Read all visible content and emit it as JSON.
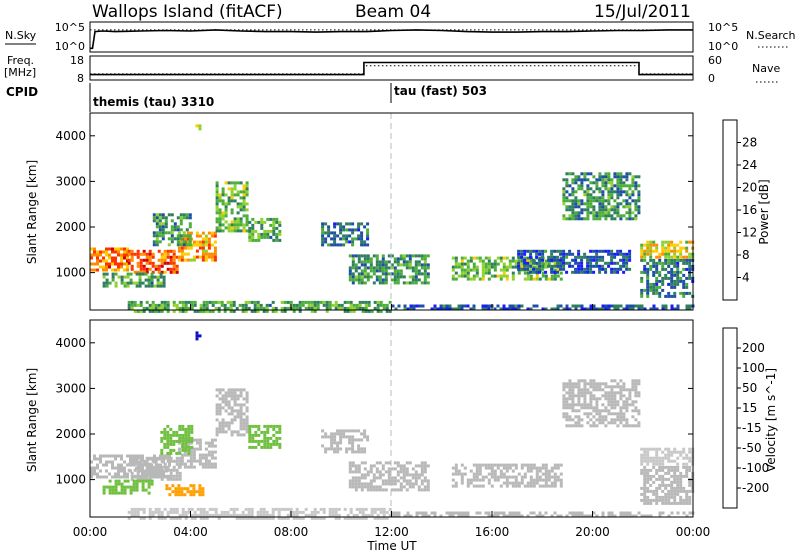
{
  "header": {
    "left": "Wallops Island (fitACF)",
    "center": "Beam 04",
    "right": "15/Jul/2011"
  },
  "colors": {
    "power": [
      "#1a1aff",
      "#1e4fa8",
      "#2f7f5e",
      "#4cae3a",
      "#8fd12e",
      "#ffcc00",
      "#ff8c00",
      "#ff3300",
      "#d40000"
    ],
    "velocity": [
      "#1010c8",
      "#2030a0",
      "#208040",
      "#70c040",
      "#b8b8b8",
      "#c8c8c8",
      "#ffa000",
      "#ff6000",
      "#ff2020"
    ],
    "ground_scatter": "#bdbdbd"
  },
  "chart_data": [
    {
      "type": "line",
      "panel": "noise",
      "left_label": "N.Sky",
      "right_label": "N.Search",
      "yticks_left": [
        "10^5",
        "10^0"
      ],
      "yticks_right": [
        "10^5",
        "10^0"
      ],
      "series": [
        {
          "name": "N.Sky",
          "x": [
            0,
            0.1,
            0.2,
            0.5,
            1,
            2,
            3,
            4,
            5,
            6,
            7,
            8,
            9,
            10,
            11,
            12,
            13,
            14,
            15,
            16,
            17,
            18,
            19,
            20,
            21,
            22,
            23,
            24
          ],
          "y": [
            0.5,
            0.5,
            3.6,
            3.7,
            3.6,
            3.7,
            3.8,
            3.7,
            3.9,
            3.7,
            3.6,
            3.6,
            3.5,
            3.6,
            3.6,
            3.8,
            3.9,
            3.8,
            3.6,
            3.5,
            3.5,
            3.6,
            3.6,
            3.7,
            3.8,
            3.8,
            3.9,
            3.9
          ]
        },
        {
          "name": "N.Search",
          "x": [
            0,
            24
          ],
          "y": [
            3.9,
            3.9
          ]
        }
      ]
    },
    {
      "type": "line",
      "panel": "frequency",
      "left_label": "Freq.",
      "left_unit": "[MHz]",
      "right_label": "Nave",
      "yticks_left": [
        "18",
        "8"
      ],
      "yticks_right": [
        "60",
        "0"
      ],
      "series": [
        {
          "name": "Freq.",
          "x": [
            0,
            10.9,
            10.9,
            21.85,
            21.85,
            24
          ],
          "y": [
            10.0,
            10.0,
            15.5,
            15.5,
            10.0,
            10.0
          ]
        },
        {
          "name": "Nave",
          "x": [
            0,
            10.9,
            10.9,
            21.85,
            21.85,
            24
          ],
          "y": [
            14,
            14,
            36,
            36,
            14,
            14
          ]
        }
      ]
    },
    {
      "type": "table",
      "panel": "cpid",
      "label": "CPID",
      "entries": [
        {
          "start_hour": 0,
          "name": "themis (tau) 3310"
        },
        {
          "start_hour": 12,
          "name": "tau (fast) 503"
        }
      ]
    },
    {
      "type": "heatmap",
      "panel": "power",
      "ylabel": "Slant Range [km]",
      "ylim": [
        180,
        4500
      ],
      "yticks": [
        1000,
        2000,
        3000,
        4000
      ],
      "xlim": [
        0,
        24
      ],
      "colorbar_label": "Power [dB]",
      "colorbar_ticks": [
        4,
        8,
        12,
        16,
        20,
        24,
        28
      ],
      "colorbar_range": [
        0,
        32
      ],
      "regions": [
        {
          "x0": 0.0,
          "x1": 1.5,
          "r0": 1050,
          "r1": 1550,
          "level": 24
        },
        {
          "x0": 1.5,
          "x1": 3.5,
          "r0": 1000,
          "r1": 1500,
          "level": 26
        },
        {
          "x0": 3.5,
          "x1": 5.0,
          "r0": 1300,
          "r1": 1900,
          "level": 22
        },
        {
          "x0": 5.0,
          "x1": 6.3,
          "r0": 1900,
          "r1": 3000,
          "level": 14
        },
        {
          "x0": 0.5,
          "x1": 3.0,
          "r0": 700,
          "r1": 1000,
          "level": 12
        },
        {
          "x0": 2.5,
          "x1": 4.0,
          "r0": 1600,
          "r1": 2300,
          "level": 10
        },
        {
          "x0": 6.3,
          "x1": 7.6,
          "r0": 1700,
          "r1": 2200,
          "level": 12
        },
        {
          "x0": 9.2,
          "x1": 11.0,
          "r0": 1600,
          "r1": 2100,
          "level": 8
        },
        {
          "x0": 10.3,
          "x1": 13.5,
          "r0": 800,
          "r1": 1400,
          "level": 10
        },
        {
          "x0": 14.4,
          "x1": 18.8,
          "r0": 850,
          "r1": 1350,
          "level": 14
        },
        {
          "x0": 18.8,
          "x1": 21.9,
          "r0": 2200,
          "r1": 3200,
          "level": 10
        },
        {
          "x0": 17.0,
          "x1": 21.5,
          "r0": 1000,
          "r1": 1500,
          "level": 6
        },
        {
          "x0": 21.9,
          "x1": 24.0,
          "r0": 1350,
          "r1": 1700,
          "level": 18
        },
        {
          "x0": 21.9,
          "x1": 24.0,
          "r0": 500,
          "r1": 1300,
          "level": 8
        },
        {
          "x0": 1.5,
          "x1": 12.0,
          "r0": 180,
          "r1": 380,
          "level": 12
        },
        {
          "x0": 12.0,
          "x1": 24.0,
          "r0": 180,
          "r1": 300,
          "level": 6
        },
        {
          "x0": 4.2,
          "x1": 4.4,
          "r0": 4150,
          "r1": 4250,
          "level": 16
        }
      ]
    },
    {
      "type": "heatmap",
      "panel": "velocity",
      "ylabel": "Slant Range [km]",
      "ylim": [
        180,
        4500
      ],
      "yticks": [
        1000,
        2000,
        3000,
        4000
      ],
      "xlabel": "Time UT",
      "xlim": [
        0,
        24
      ],
      "xticks": [
        "00:00",
        "04:00",
        "08:00",
        "12:00",
        "16:00",
        "20:00",
        "00:00"
      ],
      "colorbar_label": "Velocity [m s^-1]",
      "colorbar_ticks": [
        200,
        100,
        50,
        15,
        -15,
        -50,
        -100,
        -200
      ],
      "regions": [
        {
          "x0": 0.0,
          "x1": 3.2,
          "r0": 1050,
          "r1": 1550,
          "level": -5
        },
        {
          "x0": 1.5,
          "x1": 3.6,
          "r0": 1000,
          "r1": 1500,
          "level": 0
        },
        {
          "x0": 3.5,
          "x1": 5.0,
          "r0": 1300,
          "r1": 1900,
          "level": 5
        },
        {
          "x0": 5.0,
          "x1": 6.3,
          "r0": 2000,
          "r1": 3000,
          "level": 0
        },
        {
          "x0": 0.5,
          "x1": 2.5,
          "r0": 700,
          "r1": 1000,
          "level": 30
        },
        {
          "x0": 2.8,
          "x1": 4.0,
          "r0": 1600,
          "r1": 2200,
          "level": 40
        },
        {
          "x0": 6.3,
          "x1": 7.6,
          "r0": 1700,
          "r1": 2200,
          "level": 30
        },
        {
          "x0": 3.0,
          "x1": 4.5,
          "r0": 700,
          "r1": 900,
          "level": -60
        },
        {
          "x0": 9.2,
          "x1": 11.0,
          "r0": 1600,
          "r1": 2100,
          "level": 0
        },
        {
          "x0": 10.3,
          "x1": 13.5,
          "r0": 800,
          "r1": 1400,
          "level": 0
        },
        {
          "x0": 14.4,
          "x1": 18.8,
          "r0": 850,
          "r1": 1350,
          "level": 0
        },
        {
          "x0": 18.8,
          "x1": 21.9,
          "r0": 2200,
          "r1": 3200,
          "level": 0
        },
        {
          "x0": 21.9,
          "x1": 24.0,
          "r0": 1350,
          "r1": 1700,
          "level": -20
        },
        {
          "x0": 21.9,
          "x1": 24.0,
          "r0": 500,
          "r1": 1300,
          "level": 0
        },
        {
          "x0": 1.5,
          "x1": 12.0,
          "r0": 180,
          "r1": 380,
          "level": -40
        },
        {
          "x0": 12.0,
          "x1": 24.0,
          "r0": 180,
          "r1": 300,
          "level": 10
        },
        {
          "x0": 4.2,
          "x1": 4.4,
          "r0": 4100,
          "r1": 4250,
          "level": 250
        }
      ]
    }
  ]
}
